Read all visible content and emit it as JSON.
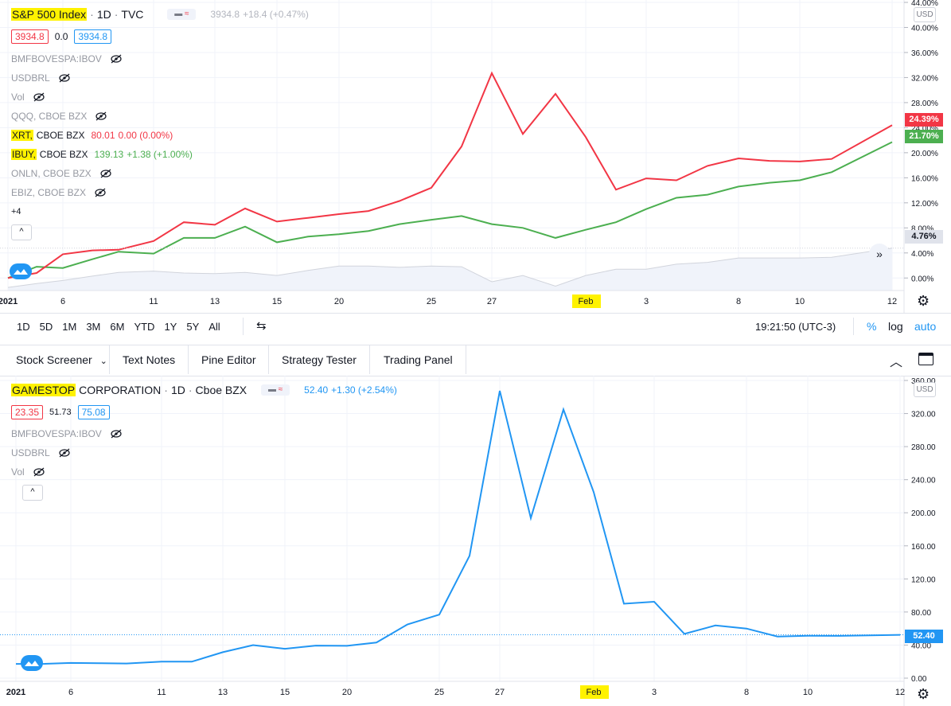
{
  "top_chart": {
    "symbol": "S&P 500 Index",
    "interval": "1D",
    "exchange": "TVC",
    "last_value": "3934.8",
    "change": "+18.4 (+0.47%)",
    "ohlc": {
      "left": "3934.8",
      "mid": "0.0",
      "right": "3934.8"
    },
    "hidden_series": [
      {
        "name": "BMFBOVESPA:IBOV"
      },
      {
        "name": "USDBRL"
      },
      {
        "name": "Vol"
      },
      {
        "name": "QQQ, CBOE BZX"
      }
    ],
    "xrt": {
      "symbol": "XRT,",
      "exchange": "CBOE BZX",
      "price": "80.01",
      "change": "0.00 (0.00%)"
    },
    "ibuy": {
      "symbol": "IBUY,",
      "exchange": "CBOE BZX",
      "price": "139.13",
      "change": "+1.38 (+1.00%)"
    },
    "hidden_series_2": [
      {
        "name": "ONLN, CBOE BZX"
      },
      {
        "name": "EBIZ, CBOE BZX"
      }
    ],
    "more_count": "+4",
    "collapse_label": "^",
    "currency": "USD",
    "y_ticks": [
      "44.00%",
      "40.00%",
      "36.00%",
      "32.00%",
      "28.00%",
      "24.00%",
      "20.00%",
      "16.00%",
      "12.00%",
      "8.00%",
      "4.00%",
      "0.00%"
    ],
    "badges": {
      "red": "24.39%",
      "green": "21.70%",
      "gray": "4.76%"
    },
    "x_ticks": [
      "2021",
      "6",
      "11",
      "13",
      "15",
      "20",
      "25",
      "27",
      "Feb",
      "3",
      "8",
      "10",
      "12"
    ]
  },
  "toolbar": {
    "ranges": [
      "1D",
      "5D",
      "1M",
      "3M",
      "6M",
      "YTD",
      "1Y",
      "5Y",
      "All"
    ],
    "time": "19:21:50 (UTC-3)",
    "percent": "%",
    "log": "log",
    "auto": "auto"
  },
  "tabs": {
    "screener": "Stock Screener",
    "screener_caret": "⌄",
    "notes": "Text Notes",
    "pine": "Pine Editor",
    "strategy": "Strategy Tester",
    "trading": "Trading Panel"
  },
  "bottom_chart": {
    "symbol_hl": "GAMESTOP",
    "symbol_rest": "CORPORATION",
    "interval": "1D",
    "exchange": "Cboe BZX",
    "last_value": "52.40",
    "change": "+1.30 (+2.54%)",
    "ohlc": {
      "left": "23.35",
      "mid": "51.73",
      "right": "75.08"
    },
    "hidden_series": [
      {
        "name": "BMFBOVESPA:IBOV"
      },
      {
        "name": "USDBRL"
      },
      {
        "name": "Vol"
      }
    ],
    "collapse_label": "^",
    "currency": "USD",
    "y_ticks": [
      "360.00",
      "320.00",
      "280.00",
      "240.00",
      "200.00",
      "160.00",
      "120.00",
      "80.00",
      "40.00",
      "0.00"
    ],
    "badge": "52.40",
    "x_ticks": [
      "2021",
      "6",
      "11",
      "13",
      "15",
      "20",
      "25",
      "27",
      "Feb",
      "3",
      "8",
      "10",
      "12"
    ]
  },
  "chart_data": [
    {
      "type": "line",
      "x": [
        "Jan 4",
        "Jan 5",
        "Jan 6",
        "Jan 7",
        "Jan 8",
        "Jan 11",
        "Jan 12",
        "Jan 13",
        "Jan 14",
        "Jan 15",
        "Jan 19",
        "Jan 20",
        "Jan 21",
        "Jan 22",
        "Jan 25",
        "Jan 26",
        "Jan 27",
        "Jan 28",
        "Jan 29",
        "Feb 1",
        "Feb 2",
        "Feb 3",
        "Feb 4",
        "Feb 5",
        "Feb 8",
        "Feb 9",
        "Feb 10",
        "Feb 11",
        "Feb 12"
      ],
      "series": [
        {
          "name": "XRT",
          "color": "#f23645",
          "values": [
            0.0,
            0.8,
            3.8,
            4.4,
            4.5,
            5.9,
            8.9,
            8.5,
            11.1,
            9.0,
            9.6,
            10.2,
            10.7,
            12.3,
            14.4,
            21.0,
            32.7,
            23.0,
            29.4,
            22.5,
            14.1,
            15.9,
            15.6,
            17.9,
            19.1,
            18.7,
            18.6,
            19.0,
            24.39
          ]
        },
        {
          "name": "IBUY",
          "color": "#4caf50",
          "values": [
            0.0,
            1.8,
            1.6,
            3.0,
            4.2,
            3.9,
            6.4,
            6.4,
            8.2,
            5.7,
            6.6,
            7.0,
            7.5,
            8.6,
            9.3,
            9.9,
            8.6,
            8.0,
            6.4,
            7.7,
            8.9,
            11.0,
            12.8,
            13.3,
            14.6,
            15.2,
            15.6,
            16.9,
            21.7
          ]
        },
        {
          "name": "S&P 500 Index",
          "color": "#d1d4dc",
          "values": [
            -1.5,
            -0.9,
            -0.4,
            0.3,
            0.9,
            1.1,
            0.8,
            0.7,
            0.9,
            0.4,
            1.2,
            1.9,
            1.9,
            1.7,
            1.9,
            1.8,
            -0.6,
            0.4,
            -1.3,
            0.4,
            1.4,
            1.4,
            2.2,
            2.5,
            3.2,
            3.2,
            3.2,
            3.3,
            4.76
          ]
        }
      ],
      "ylim": [
        -2,
        44
      ],
      "yunit": "%",
      "grid": true
    },
    {
      "type": "line",
      "x": [
        "Jan 4",
        "Jan 5",
        "Jan 6",
        "Jan 7",
        "Jan 8",
        "Jan 11",
        "Jan 12",
        "Jan 13",
        "Jan 14",
        "Jan 15",
        "Jan 19",
        "Jan 20",
        "Jan 21",
        "Jan 22",
        "Jan 25",
        "Jan 26",
        "Jan 27",
        "Jan 28",
        "Jan 29",
        "Feb 1",
        "Feb 2",
        "Feb 3",
        "Feb 4",
        "Feb 5",
        "Feb 8",
        "Feb 9",
        "Feb 10",
        "Feb 11",
        "Feb 12"
      ],
      "series": [
        {
          "name": "GAMESTOP CORPORATION",
          "color": "#2196f3",
          "values": [
            17.25,
            17.37,
            18.36,
            18.08,
            17.69,
            19.94,
            19.95,
            31.4,
            39.91,
            35.5,
            39.36,
            39.12,
            43.03,
            65.01,
            76.79,
            147.98,
            347.51,
            193.6,
            325.0,
            225.0,
            90.0,
            92.41,
            53.5,
            63.77,
            60.0,
            50.31,
            51.2,
            51.1,
            52.4
          ]
        }
      ],
      "ylim": [
        0,
        360
      ],
      "grid": true
    }
  ]
}
